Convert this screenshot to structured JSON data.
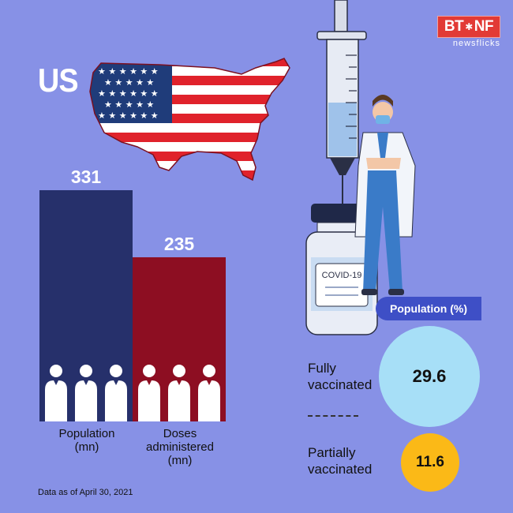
{
  "brand": {
    "box": "BT",
    "box2": "NF",
    "sub": "newsflicks"
  },
  "country": "US",
  "chart_data": [
    {
      "type": "bar",
      "categories": [
        "Population\n(mn)",
        "Doses\nadministered\n(mn)"
      ],
      "values": [
        331,
        235
      ],
      "colors": [
        "#26306b",
        "#8d0e22"
      ],
      "value_labels": [
        "331",
        "235"
      ]
    },
    {
      "type": "table",
      "title": "Population (%)",
      "rows": [
        {
          "label": "Fully\nvaccinated",
          "value": 29.6,
          "display": "29.6"
        },
        {
          "label": "Partially\nvaccinated",
          "value": 11.6,
          "display": "11.6"
        }
      ]
    }
  ],
  "bars": [
    {
      "label_lines": [
        "Population",
        "(mn)"
      ],
      "value_text": "331"
    },
    {
      "label_lines": [
        "Doses",
        "administered",
        "(mn)"
      ],
      "value_text": "235"
    }
  ],
  "vaccine_label": "COVID-19",
  "vacc": {
    "title": "Population (%)",
    "full_lines": [
      "Fully",
      "vaccinated"
    ],
    "full_value": "29.6",
    "partial_lines": [
      "Partially",
      "vaccinated"
    ],
    "partial_value": "11.6"
  },
  "footnote": "Data as of April 30, 2021"
}
